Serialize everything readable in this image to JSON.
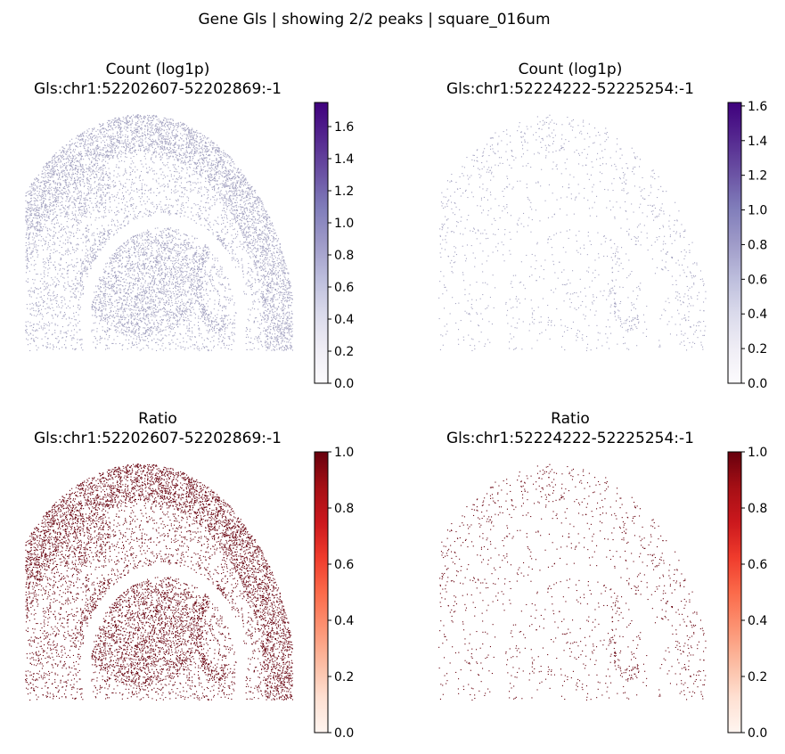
{
  "suptitle": "Gene Gls | showing 2/2 peaks | square_016um",
  "colors": {
    "purples": [
      "#fcfbfd",
      "#efedf5",
      "#dadaeb",
      "#bcbddc",
      "#9e9ac8",
      "#807dba",
      "#6a51a3",
      "#54278f",
      "#3f007d"
    ],
    "reds": [
      "#fff5f0",
      "#fee0d2",
      "#fcbba1",
      "#fc9272",
      "#fb6a4a",
      "#ef3b2c",
      "#cb181d",
      "#a50f15",
      "#67000d"
    ],
    "count_point": "#a3a2c0",
    "ratio_point": "#67000d"
  },
  "chart_data": [
    {
      "type": "scatter",
      "title_line1": "Count (log1p)",
      "title_line2": "Gls:chr1:52202607-52202869:-1",
      "colormap": "Purples",
      "colorbar_range": [
        0,
        1.75
      ],
      "colorbar_ticks": [
        "0.0",
        "0.2",
        "0.4",
        "0.6",
        "0.8",
        "1.0",
        "1.2",
        "1.4",
        "1.6"
      ],
      "colorbar_tick_values": [
        0,
        0.2,
        0.4,
        0.6,
        0.8,
        1.0,
        1.2,
        1.4,
        1.6
      ],
      "point_value": 0.69,
      "density": "high",
      "axes": "off"
    },
    {
      "type": "scatter",
      "title_line1": "Count (log1p)",
      "title_line2": "Gls:chr1:52224222-52225254:-1",
      "colormap": "Purples",
      "colorbar_range": [
        0,
        1.62
      ],
      "colorbar_ticks": [
        "0.0",
        "0.2",
        "0.4",
        "0.6",
        "0.8",
        "1.0",
        "1.2",
        "1.4",
        "1.6"
      ],
      "colorbar_tick_values": [
        0,
        0.2,
        0.4,
        0.6,
        0.8,
        1.0,
        1.2,
        1.4,
        1.6
      ],
      "point_value": 0.69,
      "density": "low",
      "axes": "off"
    },
    {
      "type": "scatter",
      "title_line1": "Ratio",
      "title_line2": "Gls:chr1:52202607-52202869:-1",
      "colormap": "Reds",
      "colorbar_range": [
        0,
        1.0
      ],
      "colorbar_ticks": [
        "0.0",
        "0.2",
        "0.4",
        "0.6",
        "0.8",
        "1.0"
      ],
      "colorbar_tick_values": [
        0,
        0.2,
        0.4,
        0.6,
        0.8,
        1.0
      ],
      "point_value": 1.0,
      "density": "high",
      "axes": "off"
    },
    {
      "type": "scatter",
      "title_line1": "Ratio",
      "title_line2": "Gls:chr1:52224222-52225254:-1",
      "colormap": "Reds",
      "colorbar_range": [
        0,
        1.0
      ],
      "colorbar_ticks": [
        "0.0",
        "0.2",
        "0.4",
        "0.6",
        "0.8",
        "1.0"
      ],
      "colorbar_tick_values": [
        0,
        0.2,
        0.4,
        0.6,
        0.8,
        1.0
      ],
      "point_value": 1.0,
      "density": "low",
      "axes": "off"
    }
  ]
}
